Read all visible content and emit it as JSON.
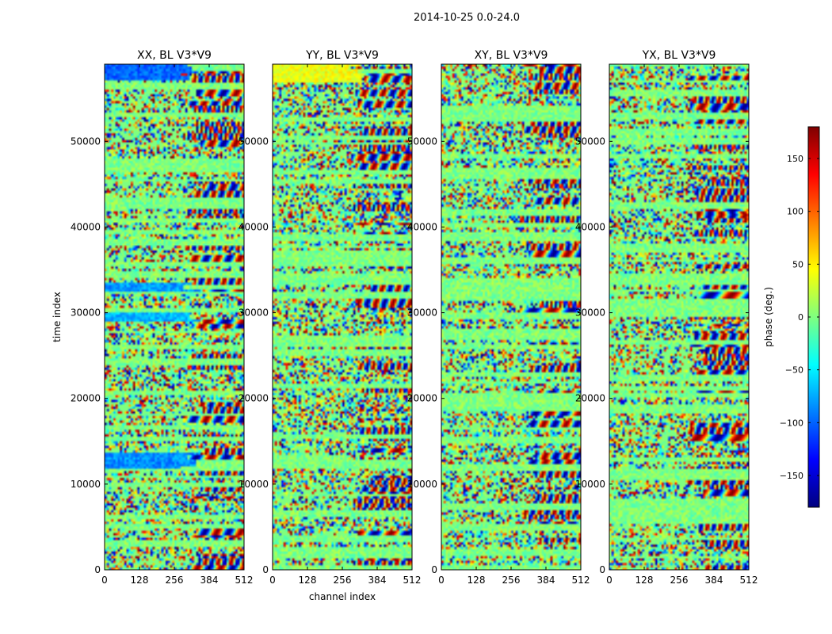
{
  "suptitle": "2014-10-25 0.0-24.0",
  "colorbar": {
    "label": "phase (deg.)",
    "range": [
      -180,
      180
    ],
    "ticks": [
      150,
      100,
      50,
      0,
      -50,
      -100,
      -150
    ],
    "tick_labels": [
      "150",
      "100",
      "50",
      "0",
      "−50",
      "−100",
      "−150"
    ],
    "colormap": "jet",
    "colors": [
      "#00007f",
      "#0000ff",
      "#007fff",
      "#00ffff",
      "#7fff7f",
      "#ffff00",
      "#ff7f00",
      "#ff0000",
      "#7f0000"
    ]
  },
  "chart_data": [
    {
      "type": "heatmap",
      "title": "XX, BL V3*V9",
      "xlabel": "",
      "ylabel": "time index",
      "xlim": [
        0,
        512
      ],
      "ylim": [
        0,
        59000
      ],
      "xticks": [
        0,
        128,
        256,
        384,
        512
      ],
      "xtick_labels": [
        "0",
        "128",
        "256",
        "384",
        "512"
      ],
      "yticks": [
        0,
        10000,
        20000,
        30000,
        40000,
        50000
      ],
      "ytick_labels": [
        "0",
        "10000",
        "20000",
        "30000",
        "40000",
        "50000"
      ],
      "value_range": [
        -180,
        180
      ],
      "z_unit": "phase (deg.)",
      "pattern_seed": 11,
      "bias_bands": [
        {
          "t0": 29000,
          "t1": 30200,
          "value": -70
        },
        {
          "t0": 11900,
          "t1": 13800,
          "value": -85
        },
        {
          "t0": 32600,
          "t1": 33700,
          "value": -80
        },
        {
          "t0": 57200,
          "t1": 59000,
          "value": -100
        }
      ]
    },
    {
      "type": "heatmap",
      "title": "YY, BL V3*V9",
      "xlabel": "channel index",
      "ylabel": "",
      "xlim": [
        0,
        512
      ],
      "ylim": [
        0,
        59000
      ],
      "xticks": [
        0,
        128,
        256,
        384,
        512
      ],
      "xtick_labels": [
        "0",
        "128",
        "256",
        "384",
        "512"
      ],
      "yticks": [
        0,
        10000,
        20000,
        30000,
        40000,
        50000
      ],
      "ytick_labels": [
        "0",
        "10000",
        "20000",
        "30000",
        "40000",
        "50000"
      ],
      "value_range": [
        -180,
        180
      ],
      "z_unit": "phase (deg.)",
      "pattern_seed": 23,
      "bias_bands": [
        {
          "t0": 57000,
          "t1": 59000,
          "value": 40
        },
        {
          "t0": 12000,
          "t1": 13600,
          "value": 0
        }
      ]
    },
    {
      "type": "heatmap",
      "title": "XY, BL V3*V9",
      "xlabel": "",
      "ylabel": "",
      "xlim": [
        0,
        512
      ],
      "ylim": [
        0,
        59000
      ],
      "xticks": [
        0,
        128,
        256,
        384,
        512
      ],
      "xtick_labels": [
        "0",
        "128",
        "256",
        "384",
        "512"
      ],
      "yticks": [
        0,
        10000,
        20000,
        30000,
        40000,
        50000
      ],
      "ytick_labels": [
        "0",
        "10000",
        "20000",
        "30000",
        "40000",
        "50000"
      ],
      "value_range": [
        -180,
        180
      ],
      "z_unit": "phase (deg.)",
      "pattern_seed": 37,
      "bias_bands": []
    },
    {
      "type": "heatmap",
      "title": "YX, BL V3*V9",
      "xlabel": "",
      "ylabel": "",
      "xlim": [
        0,
        512
      ],
      "ylim": [
        0,
        59000
      ],
      "xticks": [
        0,
        128,
        256,
        384,
        512
      ],
      "xtick_labels": [
        "0",
        "128",
        "256",
        "384",
        "512"
      ],
      "yticks": [
        0,
        10000,
        20000,
        30000,
        40000,
        50000
      ],
      "ytick_labels": [
        "0",
        "10000",
        "20000",
        "30000",
        "40000",
        "50000"
      ],
      "value_range": [
        -180,
        180
      ],
      "z_unit": "phase (deg.)",
      "pattern_seed": 53,
      "bias_bands": []
    }
  ]
}
